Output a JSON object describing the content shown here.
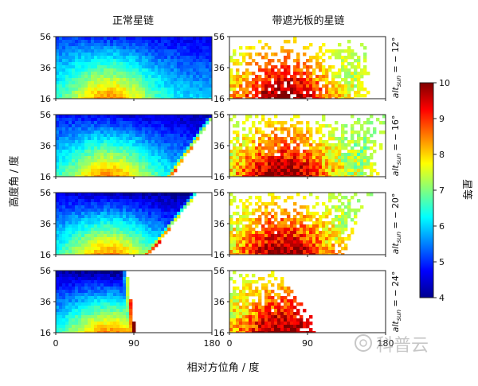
{
  "chart_data": {
    "type": "heatmap",
    "column_titles": [
      "正常星链",
      "带遮光板的星链"
    ],
    "row_labels": [
      {
        "main": "alt",
        "sub": "sun",
        "rest": " = − 12°"
      },
      {
        "main": "alt",
        "sub": "sun",
        "rest": " = − 16°"
      },
      {
        "main": "alt",
        "sub": "sun",
        "rest": " = − 20°"
      },
      {
        "main": "alt",
        "sub": "sun",
        "rest": " = − 24°"
      }
    ],
    "sun_altitudes_deg": [
      -12,
      -16,
      -20,
      -24
    ],
    "xlabel": "相对方位角 / 度",
    "ylabel": "高度角 / 度",
    "xlim": [
      0,
      180
    ],
    "ylim": [
      16,
      56
    ],
    "xticks": [
      "0",
      "90",
      "180"
    ],
    "yticks": [
      "16",
      "36",
      "56"
    ],
    "colorbar": {
      "label": "星等",
      "range": [
        4,
        10
      ],
      "ticks": [
        "4",
        "5",
        "6",
        "7",
        "8",
        "9",
        "10"
      ],
      "colormap": "jet"
    },
    "panels": [
      {
        "row": 0,
        "col": 0,
        "visible_azimuth_limit_at_16": 180,
        "visible_azimuth_limit_at_56": 180,
        "peak_magnitude": 8.3
      },
      {
        "row": 0,
        "col": 1,
        "visible_azimuth_limit_at_16": 150,
        "visible_azimuth_limit_at_56": 150,
        "peak_magnitude": 10
      },
      {
        "row": 1,
        "col": 0,
        "visible_azimuth_limit_at_16": 130,
        "visible_azimuth_limit_at_56": 180,
        "peak_magnitude": 8.3
      },
      {
        "row": 1,
        "col": 1,
        "visible_azimuth_limit_at_16": 160,
        "visible_azimuth_limit_at_56": 170,
        "peak_magnitude": 10
      },
      {
        "row": 2,
        "col": 0,
        "visible_azimuth_limit_at_16": 105,
        "visible_azimuth_limit_at_56": 160,
        "peak_magnitude": 9.7
      },
      {
        "row": 2,
        "col": 1,
        "visible_azimuth_limit_at_16": 120,
        "visible_azimuth_limit_at_56": 155,
        "peak_magnitude": 10
      },
      {
        "row": 3,
        "col": 0,
        "visible_azimuth_limit_at_16": 90,
        "visible_azimuth_limit_at_56": 80,
        "peak_magnitude": 9.8
      },
      {
        "row": 3,
        "col": 1,
        "visible_azimuth_limit_at_16": 95,
        "visible_azimuth_limit_at_56": 50,
        "peak_magnitude": 10
      }
    ]
  },
  "watermark": {
    "text": "科普云"
  }
}
